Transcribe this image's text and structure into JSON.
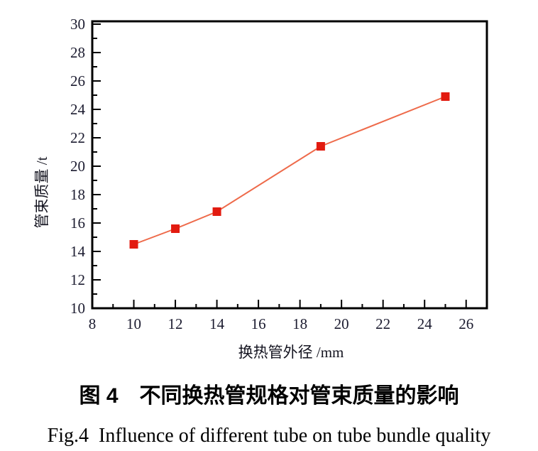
{
  "captions": {
    "zh": "图 4　不同换热管规格对管束质量的影响",
    "en": "Fig.4  Influence of different tube on tube bundle quality"
  },
  "chart_data": {
    "type": "line",
    "title": "",
    "xlabel": "换热管外径 /mm",
    "ylabel": "管束质量 /t",
    "x": [
      10,
      12,
      14,
      19,
      25
    ],
    "series": [
      {
        "name": "管束质量",
        "values": [
          14.5,
          15.6,
          16.8,
          21.4,
          24.9
        ]
      }
    ],
    "xlim": [
      8,
      27
    ],
    "ylim": [
      10,
      30.2
    ],
    "xticks": [
      8,
      10,
      12,
      14,
      16,
      18,
      20,
      22,
      24,
      26
    ],
    "yticks": [
      10,
      12,
      14,
      16,
      18,
      20,
      22,
      24,
      26,
      28,
      30
    ],
    "minor_tick_step": 1,
    "grid": false,
    "legend": "none",
    "marker": "square",
    "marker_size": 12,
    "colors": {
      "marker": "#e21b10",
      "line": "#ee6a4a",
      "axis": "#000000",
      "tick_labels": "#1c1c30",
      "axis_titles": "#141420"
    }
  }
}
